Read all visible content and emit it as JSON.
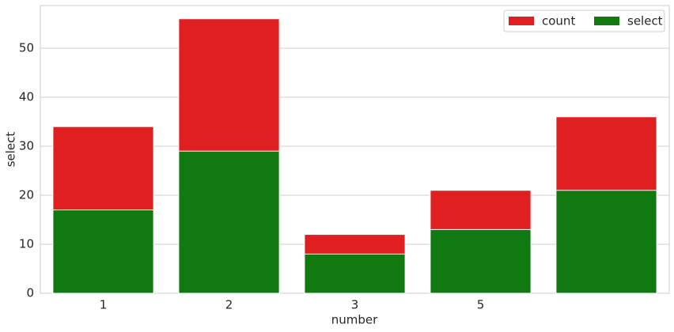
{
  "chart_data": {
    "type": "bar",
    "categories": [
      "1",
      "2",
      "3",
      "5",
      null
    ],
    "series": [
      {
        "name": "count",
        "color": "#e02020",
        "values": [
          34,
          56,
          12,
          21,
          36
        ]
      },
      {
        "name": "select",
        "color": "#107a10",
        "values": [
          17,
          29,
          8,
          13,
          21
        ]
      }
    ],
    "x_label": "number",
    "y_label": "select",
    "ylim": [
      0,
      58.7
    ],
    "yticks": [
      0,
      10,
      20,
      30,
      40,
      50
    ],
    "grid": true,
    "legend": "upper right"
  }
}
